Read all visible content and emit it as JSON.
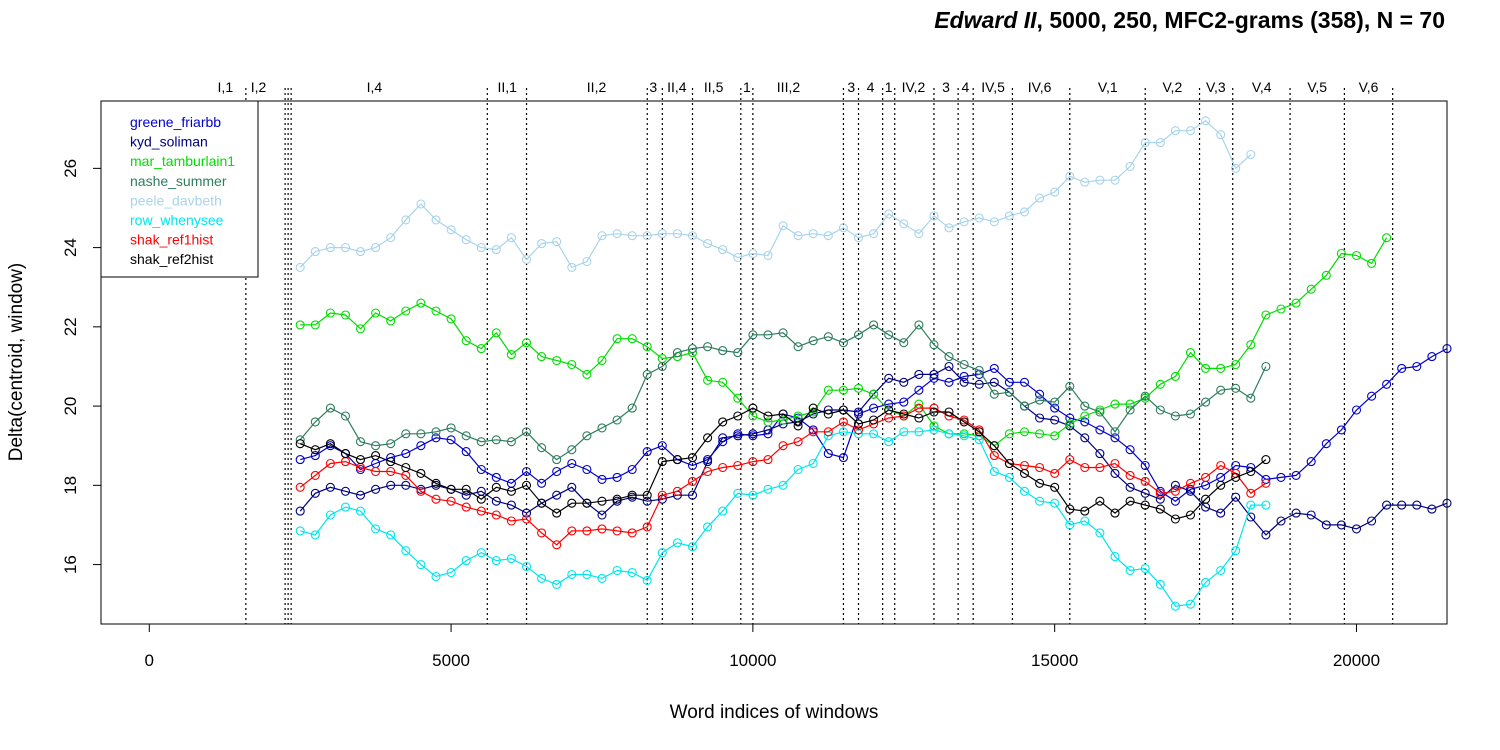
{
  "chart_data": {
    "type": "line",
    "title": {
      "italic": "Edward II",
      "rest": ", 5000, 250, MFC2-grams (358), N = 70"
    },
    "xlabel": "Word indices of windows",
    "ylabel": "Delta(centroid, window)",
    "xlim": [
      -800,
      21500
    ],
    "ylim": [
      14.5,
      27.7
    ],
    "xticks": [
      0,
      5000,
      10000,
      15000,
      20000
    ],
    "xtick_labels": [
      "0",
      "5000",
      "10000",
      "15000",
      "20000"
    ],
    "yticks": [
      16,
      18,
      20,
      22,
      24,
      26
    ],
    "ytick_labels": [
      "16",
      "18",
      "20",
      "22",
      "24",
      "26"
    ],
    "grid": false,
    "legend_position": "top-left",
    "scene_boundaries": [
      1600,
      2250,
      2300,
      2350,
      5600,
      6250,
      8250,
      8500,
      9000,
      9800,
      10000,
      11500,
      11750,
      12150,
      12350,
      13000,
      13400,
      13650,
      14300,
      15250,
      16500,
      17400,
      17950,
      18900,
      19800,
      20600
    ],
    "scenes": [
      {
        "label": "I,1",
        "x": 1260
      },
      {
        "label": "I,2",
        "x": 1810
      },
      {
        "label": "I,4",
        "x": 3730
      },
      {
        "label": "II,1",
        "x": 5930
      },
      {
        "label": "II,2",
        "x": 7410
      },
      {
        "label": "3",
        "x": 8350
      },
      {
        "label": "II,4",
        "x": 8740
      },
      {
        "label": "II,5",
        "x": 9350
      },
      {
        "label": "1",
        "x": 9900
      },
      {
        "label": "III,2",
        "x": 10590
      },
      {
        "label": "3",
        "x": 11630
      },
      {
        "label": "4",
        "x": 11950
      },
      {
        "label": "1",
        "x": 12250
      },
      {
        "label": "IV,2",
        "x": 12660
      },
      {
        "label": "3",
        "x": 13200
      },
      {
        "label": "4",
        "x": 13520
      },
      {
        "label": "IV,5",
        "x": 13980
      },
      {
        "label": "IV,6",
        "x": 14750
      },
      {
        "label": "V,1",
        "x": 15880
      },
      {
        "label": "V,2",
        "x": 16950
      },
      {
        "label": "V,3",
        "x": 17670
      },
      {
        "label": "V,4",
        "x": 18430
      },
      {
        "label": "V,5",
        "x": 19350
      },
      {
        "label": "V,6",
        "x": 20200
      }
    ],
    "x_start": 2500,
    "x_step": 250,
    "series": [
      {
        "name": "greene_friarbb",
        "color": "#0000CD",
        "values": [
          18.65,
          18.75,
          19.0,
          18.8,
          18.4,
          18.55,
          18.7,
          18.8,
          19.0,
          19.2,
          19.15,
          18.85,
          18.4,
          18.2,
          18.05,
          18.35,
          18.05,
          18.35,
          18.55,
          18.4,
          18.15,
          18.2,
          18.4,
          18.85,
          19.0,
          18.65,
          18.5,
          18.65,
          19.1,
          19.3,
          19.25,
          19.3,
          19.8,
          19.7,
          19.4,
          18.8,
          18.7,
          19.8,
          19.95,
          20.05,
          20.1,
          20.4,
          20.7,
          20.6,
          20.75,
          20.8,
          20.95,
          20.6,
          20.6,
          20.3,
          19.95,
          19.7,
          19.6,
          19.4,
          19.2,
          18.9,
          18.5,
          17.85,
          17.6,
          17.9,
          18.0,
          18.2,
          18.5,
          18.45,
          18.15,
          18.2,
          18.25,
          18.6,
          19.05,
          19.4,
          19.9,
          20.25,
          20.55,
          20.95,
          21.0,
          21.25,
          21.45
        ]
      },
      {
        "name": "kyd_soliman",
        "color": "#000080",
        "values": [
          17.35,
          17.8,
          17.95,
          17.85,
          17.75,
          17.9,
          18.0,
          18.0,
          17.9,
          18.0,
          17.9,
          17.75,
          17.85,
          17.6,
          17.5,
          17.3,
          17.55,
          17.75,
          17.95,
          17.55,
          17.25,
          17.6,
          17.7,
          17.6,
          17.65,
          17.75,
          17.75,
          18.6,
          19.2,
          19.25,
          19.3,
          19.4,
          19.55,
          19.6,
          19.8,
          19.9,
          19.9,
          19.85,
          20.3,
          20.7,
          20.6,
          20.8,
          20.8,
          21.0,
          20.6,
          20.55,
          20.6,
          20.35,
          20.0,
          19.7,
          19.65,
          19.5,
          19.2,
          18.8,
          18.3,
          17.95,
          17.8,
          17.65,
          18.0,
          17.85,
          17.45,
          17.3,
          17.7,
          17.2,
          16.75,
          17.1,
          17.3,
          17.25,
          17.0,
          17.0,
          16.9,
          17.1,
          17.5,
          17.5,
          17.5,
          17.4,
          17.55
        ]
      },
      {
        "name": "mar_tamburlain1",
        "color": "#00DD00",
        "values": [
          22.05,
          22.05,
          22.35,
          22.3,
          21.95,
          22.35,
          22.15,
          22.4,
          22.6,
          22.4,
          22.2,
          21.65,
          21.45,
          21.85,
          21.3,
          21.6,
          21.25,
          21.15,
          21.05,
          20.8,
          21.15,
          21.7,
          21.7,
          21.5,
          21.2,
          21.25,
          21.35,
          20.65,
          20.6,
          20.2,
          19.75,
          19.6,
          19.65,
          19.75,
          19.85,
          20.4,
          20.4,
          20.45,
          20.3,
          19.9,
          19.75,
          20.05,
          19.5,
          19.3,
          19.3,
          19.25,
          19.0,
          19.3,
          19.35,
          19.3,
          19.25,
          19.55,
          19.75,
          19.9,
          20.05,
          20.05,
          20.2,
          20.55,
          20.75,
          21.35,
          20.95,
          20.95,
          21.05,
          21.55,
          22.3,
          22.45,
          22.6,
          22.95,
          23.3,
          23.85,
          23.8,
          23.6,
          24.25
        ]
      },
      {
        "name": "nashe_summer",
        "color": "#2E7D5E",
        "values": [
          19.15,
          19.6,
          19.95,
          19.75,
          19.1,
          19.0,
          19.05,
          19.3,
          19.3,
          19.35,
          19.45,
          19.25,
          19.1,
          19.15,
          19.1,
          19.35,
          18.95,
          18.65,
          18.9,
          19.25,
          19.45,
          19.65,
          19.95,
          20.8,
          21.0,
          21.35,
          21.45,
          21.5,
          21.4,
          21.35,
          21.8,
          21.8,
          21.85,
          21.5,
          21.65,
          21.75,
          21.6,
          21.8,
          22.05,
          21.8,
          21.6,
          22.05,
          21.55,
          21.25,
          21.05,
          20.9,
          20.3,
          20.35,
          20.0,
          20.15,
          20.1,
          20.5,
          20.0,
          19.85,
          19.35,
          19.9,
          20.25,
          19.9,
          19.75,
          19.8,
          20.1,
          20.4,
          20.45,
          20.2,
          21.0
        ]
      },
      {
        "name": "peele_davbeth",
        "color": "#A8D4EC",
        "values": [
          23.5,
          23.9,
          24.0,
          24.0,
          23.9,
          24.0,
          24.25,
          24.7,
          25.1,
          24.7,
          24.45,
          24.2,
          24.0,
          23.95,
          24.25,
          23.7,
          24.1,
          24.15,
          23.5,
          23.65,
          24.3,
          24.35,
          24.3,
          24.3,
          24.35,
          24.35,
          24.3,
          24.1,
          23.95,
          23.75,
          23.85,
          23.8,
          24.55,
          24.3,
          24.35,
          24.3,
          24.5,
          24.25,
          24.35,
          24.85,
          24.6,
          24.35,
          24.8,
          24.5,
          24.65,
          24.75,
          24.65,
          24.8,
          24.9,
          25.25,
          25.4,
          25.8,
          25.65,
          25.7,
          25.7,
          26.05,
          26.65,
          26.65,
          26.95,
          26.95,
          27.2,
          26.85,
          26.0,
          26.35
        ]
      },
      {
        "name": "row_whenysee",
        "color": "#00E5EE",
        "values": [
          16.85,
          16.75,
          17.25,
          17.45,
          17.35,
          16.9,
          16.75,
          16.35,
          16.0,
          15.7,
          15.8,
          16.1,
          16.3,
          16.1,
          16.15,
          15.95,
          15.65,
          15.5,
          15.75,
          15.75,
          15.65,
          15.85,
          15.8,
          15.6,
          16.3,
          16.55,
          16.45,
          16.95,
          17.35,
          17.8,
          17.75,
          17.9,
          18.0,
          18.4,
          18.55,
          19.25,
          19.35,
          19.3,
          19.3,
          19.1,
          19.35,
          19.35,
          19.4,
          19.3,
          19.25,
          19.15,
          18.35,
          18.2,
          17.85,
          17.6,
          17.55,
          17.0,
          17.1,
          16.8,
          16.2,
          15.85,
          15.9,
          15.5,
          14.95,
          15.0,
          15.55,
          15.85,
          16.35,
          17.5,
          17.5
        ]
      },
      {
        "name": "shak_ref1hist",
        "color": "#FF0000",
        "values": [
          17.95,
          18.25,
          18.55,
          18.6,
          18.45,
          18.35,
          18.35,
          18.25,
          17.85,
          17.65,
          17.6,
          17.45,
          17.35,
          17.25,
          17.1,
          17.15,
          16.8,
          16.5,
          16.85,
          16.85,
          16.9,
          16.85,
          16.8,
          16.95,
          17.75,
          17.85,
          18.1,
          18.35,
          18.45,
          18.5,
          18.6,
          18.65,
          19.0,
          19.1,
          19.35,
          19.35,
          19.6,
          19.4,
          19.55,
          19.7,
          19.75,
          19.95,
          19.95,
          19.75,
          19.65,
          19.4,
          18.75,
          18.55,
          18.5,
          18.45,
          18.3,
          18.65,
          18.45,
          18.45,
          18.55,
          18.25,
          18.1,
          17.8,
          17.85,
          18.05,
          18.2,
          18.5,
          18.3,
          17.8,
          18.05
        ]
      },
      {
        "name": "shak_ref2hist",
        "color": "#000000",
        "values": [
          19.05,
          18.9,
          19.05,
          18.8,
          18.65,
          18.75,
          18.6,
          18.45,
          18.3,
          18.05,
          17.9,
          17.9,
          17.65,
          17.95,
          17.85,
          18.0,
          17.55,
          17.3,
          17.55,
          17.55,
          17.6,
          17.65,
          17.75,
          17.75,
          18.6,
          18.65,
          18.7,
          19.2,
          19.6,
          19.75,
          19.95,
          19.75,
          19.8,
          19.5,
          19.95,
          19.8,
          19.9,
          19.55,
          19.65,
          19.9,
          19.8,
          19.7,
          19.85,
          19.85,
          19.6,
          19.35,
          19.0,
          18.55,
          18.3,
          18.05,
          17.95,
          17.4,
          17.35,
          17.6,
          17.3,
          17.6,
          17.5,
          17.4,
          17.15,
          17.25,
          17.65,
          18.0,
          18.2,
          18.35,
          18.65
        ]
      }
    ]
  }
}
